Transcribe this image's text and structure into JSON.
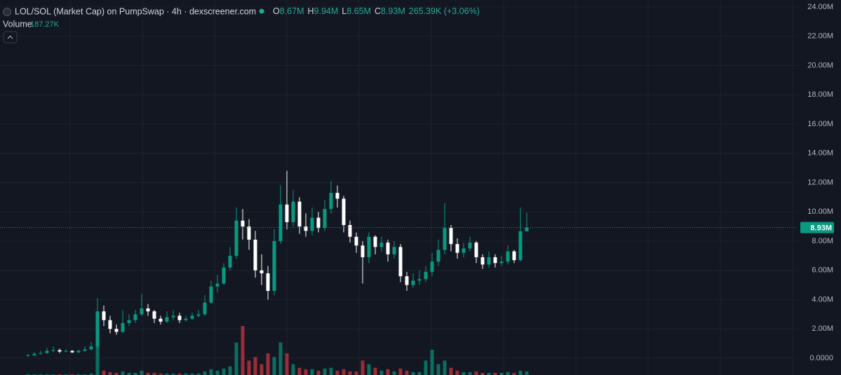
{
  "chart_data": {
    "type": "candlestick",
    "title": "LOL/SOL (Market Cap) on PumpSwap · 4h · dexscreener.com",
    "ohlc": [
      {
        "key": "O",
        "value": "8.67M"
      },
      {
        "key": "H",
        "value": "9.94M"
      },
      {
        "key": "L",
        "value": "8.65M"
      },
      {
        "key": "C",
        "value": "8.93M"
      },
      {
        "key": "",
        "value": "265.39K (+3.06%)"
      }
    ],
    "volume_label": "Volume",
    "volume_value": "187.27K",
    "last_price": {
      "value": 8.93,
      "label": "8.93M"
    },
    "up_color": "#089981",
    "down_color": "#ffffff",
    "volume_up_color": "#0b6e60",
    "volume_down_color": "#9b2c38",
    "ylim": [
      -1.15,
      24.48
    ],
    "yticks": [
      {
        "value": 0,
        "label": "0.0000"
      },
      {
        "value": 2,
        "label": "2.00M"
      },
      {
        "value": 4,
        "label": "4.00M"
      },
      {
        "value": 6,
        "label": "6.00M"
      },
      {
        "value": 8,
        "label": "8.00M"
      },
      {
        "value": 10,
        "label": "10.00M"
      },
      {
        "value": 12,
        "label": "12.00M"
      },
      {
        "value": 14,
        "label": "14.00M"
      },
      {
        "value": 16,
        "label": "16.00M"
      },
      {
        "value": 18,
        "label": "18.00M"
      },
      {
        "value": 20,
        "label": "20.00M"
      },
      {
        "value": 22,
        "label": "22.00M"
      },
      {
        "value": 24,
        "label": "24.00M"
      }
    ],
    "grid": true,
    "open": [
      0.15,
      0.2,
      0.3,
      0.35,
      0.5,
      0.55,
      0.45,
      0.5,
      0.4,
      0.5,
      0.6,
      0.8,
      3.2,
      2.6,
      2.0,
      1.8,
      2.4,
      2.6,
      3.0,
      3.4,
      3.2,
      2.7,
      2.5,
      2.8,
      2.9,
      2.6,
      2.7,
      2.9,
      3.0,
      3.8,
      4.9,
      5.1,
      6.2,
      7.0,
      9.4,
      9.0,
      8.1,
      6.0,
      5.8,
      4.6,
      8.0,
      10.5,
      9.3,
      10.7,
      9.0,
      8.7,
      9.6,
      8.9,
      10.2,
      11.3,
      10.9,
      9.1,
      8.3,
      7.7,
      6.9,
      8.3,
      7.6,
      7.9,
      7.1,
      7.6,
      5.6,
      5.0,
      5.3,
      5.4,
      5.9,
      6.6,
      7.4,
      8.9,
      7.8,
      7.2,
      7.5,
      7.9,
      6.9,
      6.4,
      6.9,
      6.5,
      6.6,
      7.3,
      6.7,
      8.67
    ],
    "high": [
      0.3,
      0.4,
      0.5,
      0.7,
      0.8,
      0.65,
      0.6,
      0.55,
      0.6,
      0.8,
      1.1,
      4.1,
      3.6,
      2.9,
      2.3,
      3.3,
      3.0,
      3.3,
      4.4,
      3.7,
      3.3,
      2.9,
      3.2,
      3.3,
      3.1,
      2.9,
      3.1,
      3.3,
      4.3,
      5.3,
      5.7,
      6.5,
      7.6,
      10.3,
      10.2,
      9.5,
      8.7,
      7.1,
      6.3,
      8.8,
      11.8,
      12.8,
      11.5,
      11.0,
      9.9,
      10.3,
      10.0,
      10.8,
      12.1,
      11.8,
      11.1,
      9.4,
      8.6,
      8.0,
      8.6,
      8.4,
      8.3,
      8.1,
      8.0,
      7.8,
      5.9,
      5.8,
      6.0,
      6.3,
      7.2,
      8.1,
      10.6,
      9.1,
      8.2,
      7.9,
      8.3,
      8.0,
      7.1,
      7.3,
      7.1,
      7.0,
      7.7,
      7.4,
      10.3,
      9.94
    ],
    "low": [
      0.1,
      0.15,
      0.25,
      0.3,
      0.4,
      0.35,
      0.4,
      0.35,
      0.35,
      0.45,
      0.55,
      0.7,
      2.2,
      1.7,
      1.6,
      1.7,
      2.2,
      2.4,
      2.9,
      2.9,
      2.4,
      2.3,
      2.4,
      2.6,
      2.4,
      2.5,
      2.6,
      2.8,
      2.9,
      3.7,
      4.5,
      5.0,
      6.0,
      6.8,
      8.1,
      7.4,
      5.5,
      5.0,
      4.0,
      4.3,
      7.8,
      8.8,
      9.0,
      8.5,
      8.3,
      8.4,
      8.6,
      8.7,
      9.9,
      10.3,
      8.6,
      7.9,
      7.2,
      5.1,
      6.5,
      7.1,
      7.3,
      6.6,
      6.8,
      5.2,
      4.6,
      4.8,
      5.0,
      5.2,
      5.6,
      6.3,
      7.1,
      7.3,
      6.8,
      6.9,
      7.3,
      6.5,
      6.1,
      6.2,
      6.2,
      6.3,
      6.4,
      6.5,
      6.6,
      8.65
    ],
    "close": [
      0.2,
      0.3,
      0.35,
      0.5,
      0.55,
      0.45,
      0.5,
      0.4,
      0.5,
      0.6,
      0.8,
      3.2,
      2.6,
      2.0,
      1.8,
      2.4,
      2.6,
      3.0,
      3.4,
      3.2,
      2.7,
      2.5,
      2.8,
      2.9,
      2.6,
      2.7,
      2.9,
      3.0,
      3.8,
      4.9,
      5.1,
      6.2,
      7.0,
      9.4,
      9.0,
      8.1,
      6.0,
      5.8,
      4.6,
      8.0,
      10.5,
      9.3,
      10.7,
      9.0,
      8.7,
      9.6,
      8.9,
      10.2,
      11.3,
      10.9,
      9.1,
      8.3,
      7.7,
      6.9,
      8.3,
      7.6,
      7.9,
      7.1,
      7.6,
      5.6,
      5.0,
      5.3,
      5.4,
      5.9,
      6.6,
      7.4,
      8.9,
      7.8,
      7.2,
      7.5,
      7.9,
      6.9,
      6.4,
      6.9,
      6.5,
      6.6,
      7.3,
      6.7,
      8.67,
      8.93
    ],
    "volume": [
      1,
      1,
      1,
      1,
      1,
      1,
      1,
      1,
      1,
      1,
      2,
      40,
      6,
      4,
      3,
      5,
      3,
      3,
      6,
      3,
      3,
      2,
      2,
      2,
      2,
      2,
      2,
      2,
      5,
      8,
      6,
      9,
      12,
      45,
      68,
      20,
      25,
      15,
      30,
      25,
      45,
      30,
      15,
      10,
      8,
      8,
      6,
      9,
      10,
      6,
      8,
      5,
      5,
      20,
      15,
      10,
      6,
      8,
      5,
      9,
      6,
      4,
      4,
      20,
      35,
      15,
      20,
      10,
      6,
      4,
      4,
      5,
      3,
      3,
      3,
      3,
      4,
      3,
      6,
      5
    ]
  }
}
